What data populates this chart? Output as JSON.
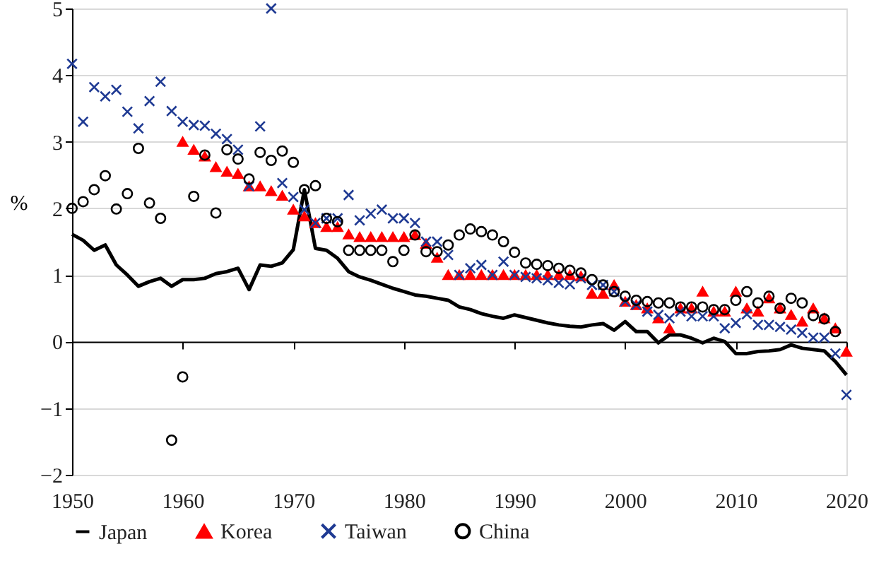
{
  "chart_data": {
    "type": "scatter",
    "ylabel": "%",
    "xlim": [
      1950,
      2020
    ],
    "xticks": [
      1950,
      1960,
      1970,
      1980,
      1990,
      2000,
      2010,
      2020
    ],
    "ylim": [
      -2,
      5
    ],
    "yticks": [
      -2,
      -1,
      0,
      1,
      2,
      3,
      4,
      5
    ],
    "grid": "y",
    "legend": "bottom",
    "series": [
      {
        "name": "Japan",
        "type": "line",
        "marker": "none",
        "line_style": "solid",
        "color": "#000000",
        "x": [
          1950,
          1951,
          1952,
          1953,
          1954,
          1955,
          1956,
          1957,
          1958,
          1959,
          1960,
          1961,
          1962,
          1963,
          1964,
          1965,
          1966,
          1967,
          1968,
          1969,
          1970,
          1971,
          1972,
          1973,
          1974,
          1975,
          1976,
          1977,
          1978,
          1979,
          1980,
          1981,
          1982,
          1983,
          1984,
          1985,
          1986,
          1987,
          1988,
          1989,
          1990,
          1991,
          1992,
          1993,
          1994,
          1995,
          1996,
          1997,
          1998,
          1999,
          2000,
          2001,
          2002,
          2003,
          2004,
          2005,
          2006,
          2007,
          2008,
          2009,
          2010,
          2011,
          2012,
          2013,
          2014,
          2015,
          2016,
          2017,
          2018,
          2019,
          2020
        ],
        "values": [
          1.61,
          1.52,
          1.37,
          1.45,
          1.15,
          1.0,
          0.83,
          0.9,
          0.95,
          0.83,
          0.93,
          0.93,
          0.95,
          1.02,
          1.05,
          1.1,
          0.78,
          1.15,
          1.13,
          1.18,
          1.38,
          2.28,
          1.4,
          1.37,
          1.25,
          1.05,
          0.97,
          0.92,
          0.86,
          0.8,
          0.75,
          0.7,
          0.68,
          0.65,
          0.62,
          0.52,
          0.48,
          0.42,
          0.38,
          0.35,
          0.4,
          0.36,
          0.32,
          0.28,
          0.25,
          0.23,
          0.22,
          0.25,
          0.27,
          0.17,
          0.3,
          0.15,
          0.15,
          -0.02,
          0.1,
          0.1,
          0.05,
          -0.02,
          0.05,
          0.0,
          -0.18,
          -0.18,
          -0.15,
          -0.14,
          -0.12,
          -0.05,
          -0.1,
          -0.12,
          -0.14,
          -0.3,
          -0.5
        ]
      },
      {
        "name": "Korea",
        "marker": "triangle",
        "color": "#ff0000",
        "x": [
          1960,
          1961,
          1962,
          1963,
          1964,
          1965,
          1966,
          1967,
          1968,
          1969,
          1970,
          1971,
          1972,
          1973,
          1974,
          1975,
          1976,
          1977,
          1978,
          1979,
          1980,
          1981,
          1982,
          1983,
          1984,
          1985,
          1986,
          1987,
          1988,
          1989,
          1990,
          1991,
          1992,
          1993,
          1994,
          1995,
          1996,
          1997,
          1998,
          1999,
          2000,
          2001,
          2002,
          2003,
          2004,
          2005,
          2006,
          2007,
          2008,
          2009,
          2010,
          2011,
          2012,
          2013,
          2014,
          2015,
          2016,
          2017,
          2018,
          2019,
          2020
        ],
        "values": [
          3.0,
          2.88,
          2.78,
          2.62,
          2.55,
          2.52,
          2.33,
          2.33,
          2.26,
          2.19,
          1.98,
          1.88,
          1.78,
          1.72,
          1.72,
          1.61,
          1.57,
          1.57,
          1.57,
          1.57,
          1.57,
          1.6,
          1.47,
          1.26,
          1.0,
          1.0,
          1.0,
          1.0,
          1.0,
          1.0,
          1.0,
          1.0,
          1.0,
          1.0,
          1.0,
          1.0,
          0.98,
          0.72,
          0.72,
          0.85,
          0.6,
          0.55,
          0.5,
          0.35,
          0.2,
          0.5,
          0.5,
          0.75,
          0.45,
          0.45,
          0.75,
          0.5,
          0.45,
          0.65,
          0.5,
          0.4,
          0.3,
          0.5,
          0.35,
          0.2,
          -0.15
        ]
      },
      {
        "name": "Taiwan",
        "marker": "cross",
        "color": "#1f3a93",
        "x": [
          1950,
          1951,
          1952,
          1953,
          1954,
          1955,
          1956,
          1957,
          1958,
          1959,
          1960,
          1961,
          1962,
          1963,
          1964,
          1965,
          1966,
          1967,
          1968,
          1969,
          1970,
          1971,
          1972,
          1973,
          1974,
          1975,
          1976,
          1977,
          1978,
          1979,
          1980,
          1981,
          1982,
          1983,
          1984,
          1985,
          1986,
          1987,
          1988,
          1989,
          1990,
          1991,
          1992,
          1993,
          1994,
          1995,
          1996,
          1997,
          1998,
          1999,
          2000,
          2001,
          2002,
          2003,
          2004,
          2005,
          2006,
          2007,
          2008,
          2009,
          2010,
          2011,
          2012,
          2013,
          2014,
          2015,
          2016,
          2017,
          2018,
          2019,
          2020
        ],
        "values": [
          4.17,
          3.3,
          3.82,
          3.68,
          3.78,
          3.45,
          3.2,
          3.61,
          3.9,
          3.46,
          3.3,
          3.25,
          3.24,
          3.12,
          3.04,
          2.88,
          2.33,
          3.23,
          5.0,
          2.38,
          2.17,
          1.98,
          1.78,
          1.85,
          1.85,
          2.2,
          1.82,
          1.92,
          1.98,
          1.85,
          1.85,
          1.78,
          1.5,
          1.5,
          1.3,
          1.0,
          1.1,
          1.15,
          1.0,
          1.2,
          1.0,
          0.97,
          0.95,
          0.92,
          0.88,
          0.86,
          0.95,
          0.85,
          0.85,
          0.75,
          0.6,
          0.55,
          0.45,
          0.4,
          0.35,
          0.45,
          0.38,
          0.38,
          0.38,
          0.2,
          0.28,
          0.41,
          0.25,
          0.25,
          0.22,
          0.18,
          0.13,
          0.06,
          0.06,
          -0.18,
          -0.8
        ]
      },
      {
        "name": "China",
        "marker": "circle",
        "color": "#000000",
        "x": [
          1950,
          1951,
          1952,
          1953,
          1954,
          1955,
          1956,
          1957,
          1958,
          1959,
          1960,
          1961,
          1962,
          1963,
          1964,
          1965,
          1966,
          1967,
          1968,
          1969,
          1970,
          1971,
          1972,
          1973,
          1974,
          1975,
          1976,
          1977,
          1978,
          1979,
          1980,
          1981,
          1982,
          1983,
          1984,
          1985,
          1986,
          1987,
          1988,
          1989,
          1990,
          1991,
          1992,
          1993,
          1994,
          1995,
          1996,
          1997,
          1998,
          1999,
          2000,
          2001,
          2002,
          2003,
          2004,
          2005,
          2006,
          2007,
          2008,
          2009,
          2010,
          2011,
          2012,
          2013,
          2014,
          2015,
          2016,
          2017,
          2018,
          2019
        ],
        "values": [
          2.0,
          2.1,
          2.28,
          2.49,
          1.99,
          2.22,
          2.9,
          2.08,
          1.85,
          -1.48,
          -0.53,
          2.18,
          2.8,
          1.93,
          2.88,
          2.74,
          2.44,
          2.84,
          2.72,
          2.86,
          2.69,
          2.28,
          2.34,
          1.85,
          1.8,
          1.37,
          1.37,
          1.37,
          1.37,
          1.2,
          1.37,
          1.6,
          1.35,
          1.35,
          1.45,
          1.6,
          1.69,
          1.65,
          1.6,
          1.5,
          1.34,
          1.18,
          1.16,
          1.14,
          1.1,
          1.07,
          1.03,
          0.93,
          0.85,
          0.75,
          0.68,
          0.62,
          0.6,
          0.58,
          0.58,
          0.52,
          0.52,
          0.52,
          0.48,
          0.48,
          0.62,
          0.75,
          0.58,
          0.68,
          0.5,
          0.65,
          0.58,
          0.39,
          0.34,
          0.15
        ]
      }
    ]
  }
}
